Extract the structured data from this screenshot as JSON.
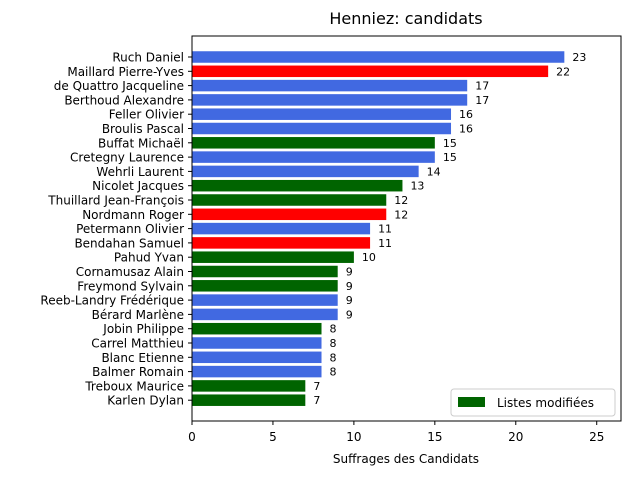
{
  "chart_data": {
    "type": "bar",
    "orientation": "horizontal",
    "title": "Henniez: candidats",
    "xlabel": "Suffrages des Candidats",
    "ylabel": "",
    "xlim": [
      0,
      26.5
    ],
    "xticks": [
      0,
      5,
      10,
      15,
      20,
      25
    ],
    "grid": false,
    "legend": {
      "position": "lower-right",
      "entries": [
        {
          "label": "Listes modifiées",
          "color": "#006400"
        }
      ]
    },
    "colors": {
      "blue": "#4169E1",
      "red": "#FF0000",
      "green": "#006400"
    },
    "categories": [
      "Ruch Daniel",
      "Maillard Pierre-Yves",
      "de Quattro Jacqueline",
      "Berthoud Alexandre",
      "Feller Olivier",
      "Broulis Pascal",
      "Buffat Michaël",
      "Cretegny Laurence",
      "Wehrli Laurent",
      "Nicolet Jacques",
      "Thuillard Jean-François",
      "Nordmann Roger",
      "Petermann Olivier",
      "Bendahan Samuel",
      "Pahud Yvan",
      "Cornamusaz Alain",
      "Freymond Sylvain",
      "Reeb-Landry Frédérique",
      "Bérard Marlène",
      "Jobin Philippe",
      "Carrel Matthieu",
      "Blanc Etienne",
      "Balmer Romain",
      "Treboux Maurice",
      "Karlen Dylan"
    ],
    "values": [
      23,
      22,
      17,
      17,
      16,
      16,
      15,
      15,
      14,
      13,
      12,
      12,
      11,
      11,
      10,
      9,
      9,
      9,
      9,
      8,
      8,
      8,
      8,
      7,
      7
    ],
    "bar_colors": [
      "blue",
      "red",
      "blue",
      "blue",
      "blue",
      "blue",
      "green",
      "blue",
      "blue",
      "green",
      "green",
      "red",
      "blue",
      "red",
      "green",
      "green",
      "green",
      "blue",
      "blue",
      "green",
      "blue",
      "blue",
      "blue",
      "green",
      "green"
    ]
  }
}
